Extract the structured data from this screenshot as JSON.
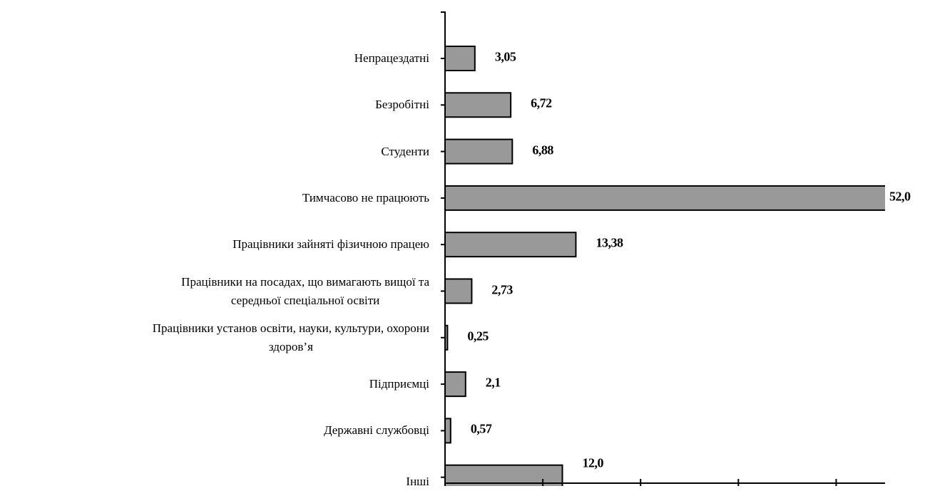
{
  "chart_data": {
    "type": "barh",
    "categories": [
      "Непрацездатні",
      "Безробітні",
      "Студенти",
      "Тимчасово не працюють",
      "Працівники зайняті фізичною працею",
      "Працівники на посадах, що вимагають вищої та\nсередньої спеціальної освіти",
      "Працівники установ освіти, науки, культури, охорони\nздоров’я",
      "Підприємці",
      "Державні службовці",
      "Інші"
    ],
    "values": [
      3.05,
      6.72,
      6.88,
      52.0,
      13.38,
      2.73,
      0.25,
      2.1,
      0.57,
      12.0
    ],
    "value_labels": [
      "3,05",
      "6,72",
      "6,88",
      "52,0",
      "13,38",
      "2,73",
      "0,25",
      "2,1",
      "0,57",
      "12,0"
    ],
    "color": "#999999",
    "xlim": [
      0,
      45
    ],
    "xticks": [
      0,
      10,
      20,
      30,
      40
    ]
  }
}
